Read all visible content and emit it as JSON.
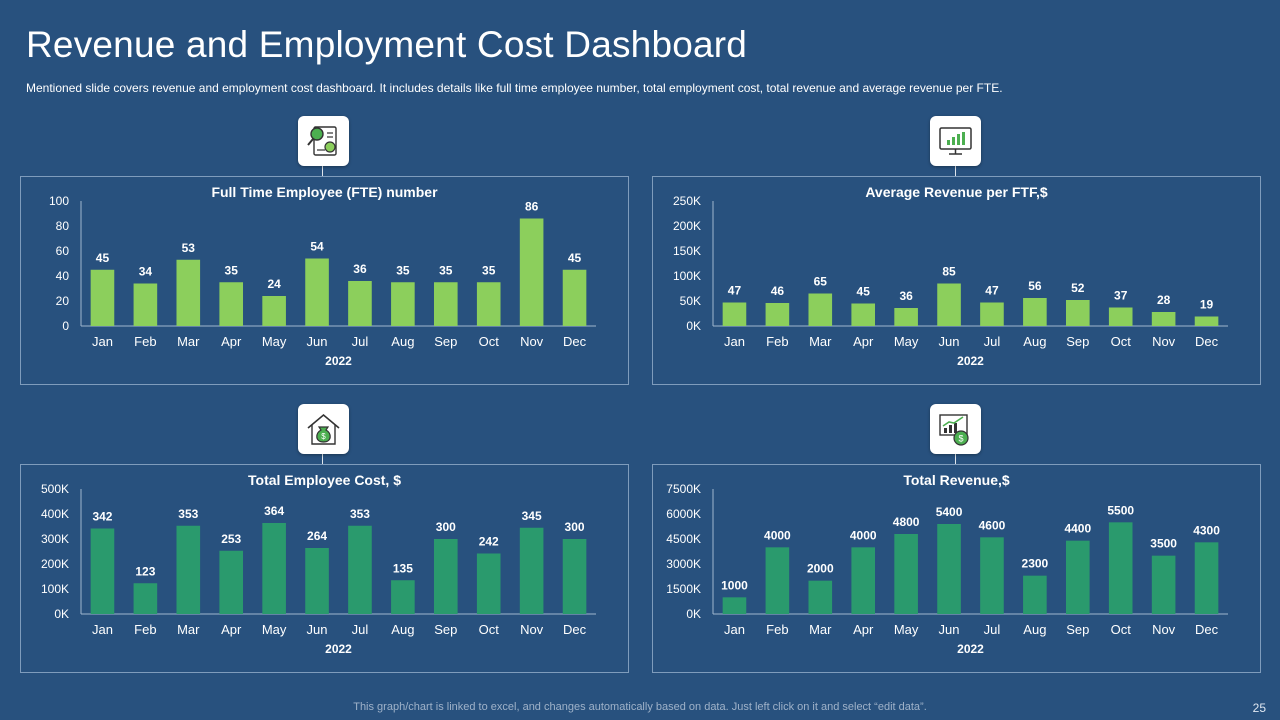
{
  "header": {
    "title": "Revenue and Employment Cost Dashboard",
    "subtitle": "Mentioned slide covers revenue  and employment cost dashboard. It includes details like full time employee number, total employment cost, total revenue  and average  revenue  per FTE."
  },
  "footer": {
    "note": "This graph/chart is linked to excel,  and changes automatically based on data. Just left click on it and select “edit data”.",
    "page_number": "25"
  },
  "icons": [
    "analytics-report-icon",
    "monitor-chart-icon",
    "money-bag-house-icon",
    "revenue-growth-icon"
  ],
  "colors": {
    "background": "#28517e",
    "bar_light_green": "#8ccf5c",
    "bar_teal_green": "#2a9a6d",
    "panel_border": "#7f9cbc"
  },
  "chart_data": [
    {
      "type": "bar",
      "title": "Full Time Employee (FTE) number",
      "xlabel": "2022",
      "ylabel": "",
      "categories": [
        "Jan",
        "Feb",
        "Mar",
        "Apr",
        "May",
        "Jun",
        "Jul",
        "Aug",
        "Sep",
        "Oct",
        "Nov",
        "Dec"
      ],
      "values": [
        45,
        34,
        53,
        35,
        24,
        54,
        36,
        35,
        35,
        35,
        86,
        45
      ],
      "value_labels": [
        "45",
        "34",
        "53",
        "35",
        "24",
        "54",
        "36",
        "35",
        "35",
        "35",
        "86",
        "45"
      ],
      "ylim": [
        0,
        100
      ],
      "yticks": [
        "0",
        "20",
        "40",
        "60",
        "80",
        "100"
      ],
      "grid": false,
      "color": "#8ccf5c"
    },
    {
      "type": "bar",
      "title": "Average Revenue per FTF,$",
      "xlabel": "2022",
      "ylabel": "",
      "categories": [
        "Jan",
        "Feb",
        "Mar",
        "Apr",
        "May",
        "Jun",
        "Jul",
        "Aug",
        "Sep",
        "Oct",
        "Nov",
        "Dec"
      ],
      "values": [
        47,
        46,
        65,
        45,
        36,
        85,
        47,
        56,
        52,
        37,
        28,
        19
      ],
      "value_labels": [
        "47",
        "46",
        "65",
        "45",
        "36",
        "85",
        "47",
        "56",
        "52",
        "37",
        "28",
        "19"
      ],
      "ylim": [
        0,
        250
      ],
      "yticks": [
        "0K",
        "50K",
        "100K",
        "150K",
        "200K",
        "250K"
      ],
      "grid": false,
      "color": "#8ccf5c"
    },
    {
      "type": "bar",
      "title": "Total Employee Cost, $",
      "xlabel": "2022",
      "ylabel": "",
      "categories": [
        "Jan",
        "Feb",
        "Mar",
        "Apr",
        "May",
        "Jun",
        "Jul",
        "Aug",
        "Sep",
        "Oct",
        "Nov",
        "Dec"
      ],
      "values": [
        342,
        123,
        353,
        253,
        364,
        264,
        353,
        135,
        300,
        242,
        345,
        300
      ],
      "value_labels": [
        "342",
        "123",
        "353",
        "253",
        "364",
        "264",
        "353",
        "135",
        "300",
        "242",
        "345",
        "300"
      ],
      "ylim": [
        0,
        500
      ],
      "yticks": [
        "0K",
        "100K",
        "200K",
        "300K",
        "400K",
        "500K"
      ],
      "grid": false,
      "color": "#2a9a6d"
    },
    {
      "type": "bar",
      "title": "Total Revenue,$",
      "xlabel": "2022",
      "ylabel": "",
      "categories": [
        "Jan",
        "Feb",
        "Mar",
        "Apr",
        "May",
        "Jun",
        "Jul",
        "Aug",
        "Sep",
        "Oct",
        "Nov",
        "Dec"
      ],
      "values": [
        1000,
        4000,
        2000,
        4000,
        4800,
        5400,
        4600,
        2300,
        4400,
        5500,
        3500,
        4300
      ],
      "value_labels": [
        "1000",
        "4000",
        "2000",
        "4000",
        "4800",
        "5400",
        "4600",
        "2300",
        "4400",
        "5500",
        "3500",
        "4300"
      ],
      "ylim": [
        0,
        7500
      ],
      "yticks": [
        "0K",
        "1500K",
        "3000K",
        "4500K",
        "6000K",
        "7500K"
      ],
      "grid": false,
      "color": "#2a9a6d"
    }
  ]
}
